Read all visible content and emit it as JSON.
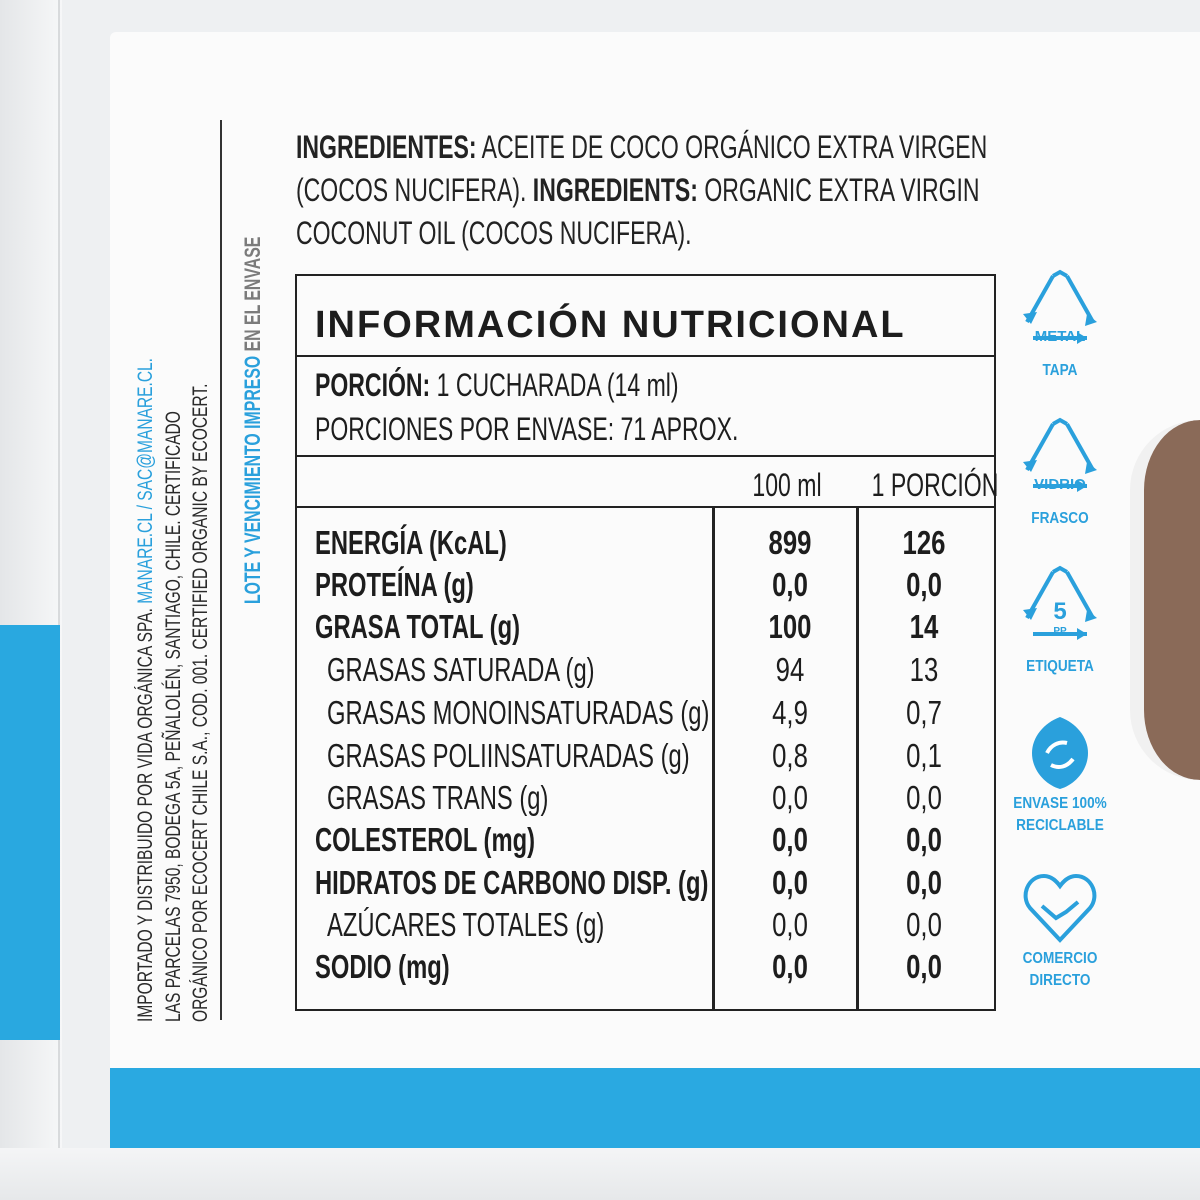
{
  "side_text": {
    "line1_a": "IMPORTADO Y DISTRIBUIDO POR VIDA ORGÁNICA SPA. ",
    "line1_b": "MANARE.CL / SAC@MANARE.CL.",
    "line2": "LAS PARCELAS 7950, BODEGA 5A, PEÑALOLÉN, SANTIAGO, CHILE. CERTIFICADO",
    "line3": "ORGÁNICO POR ECOCERT CHILE S.A., COD. 001. CERTIFIED ORGANIC BY ECOCERT.",
    "lote_blue": "LOTE Y VENCIMIENTO IMPRESO",
    "lote_gray": " EN EL ENVASE"
  },
  "ingredients": {
    "label_es": "INGREDIENTES:",
    "text_es_1": " ACEITE DE COCO ORGÁNICO EXTRA VIRGEN",
    "text_es_2": "(COCOS NUCIFERA). ",
    "label_en": "INGREDIENTS:",
    "text_en_1": " ORGANIC EXTRA VIRGIN",
    "text_en_2": "COCONUT OIL (COCOS NUCIFERA)."
  },
  "nutrition": {
    "title": "INFORMACIÓN NUTRICIONAL",
    "portion_label": "PORCIÓN:",
    "portion_value": " 1 CUCHARADA (14 ml)",
    "servings": "PORCIONES POR ENVASE: 71 APROX.",
    "col1": "100 ml",
    "col2": "1 PORCIÓN",
    "rows": [
      {
        "name": "ENERGÍA (KcAL)",
        "v1": "899",
        "v2": "126",
        "style": "main"
      },
      {
        "name": "PROTEÍNA (g)",
        "v1": "0,0",
        "v2": "0,0",
        "style": "bold"
      },
      {
        "name": "GRASA TOTAL (g)",
        "v1": "100",
        "v2": "14",
        "style": "bold"
      },
      {
        "name": "GRASAS SATURADA (g)",
        "v1": "94",
        "v2": "13",
        "style": "sub"
      },
      {
        "name": "GRASAS MONOINSATURADAS (g)",
        "v1": "4,9",
        "v2": "0,7",
        "style": "sub"
      },
      {
        "name": "GRASAS POLIINSATURADAS (g)",
        "v1": "0,8",
        "v2": "0,1",
        "style": "sub"
      },
      {
        "name": "GRASAS TRANS (g)",
        "v1": "0,0",
        "v2": "0,0",
        "style": "sub"
      },
      {
        "name": "COLESTEROL (mg)",
        "v1": "0,0",
        "v2": "0,0",
        "style": "bold"
      },
      {
        "name": "HIDRATOS DE CARBONO DISP. (g)",
        "v1": "0,0",
        "v2": "0,0",
        "style": "bold"
      },
      {
        "name": "AZÚCARES TOTALES (g)",
        "v1": "0,0",
        "v2": "0,0",
        "style": "sub"
      },
      {
        "name": "SODIO (mg)",
        "v1": "0,0",
        "v2": "0,0",
        "style": "bold"
      }
    ]
  },
  "icons": [
    {
      "icon": "recycle-triangle-icon",
      "inner": "METAL",
      "caption": "TAPA"
    },
    {
      "icon": "recycle-triangle-icon",
      "inner": "VIDRIO",
      "caption": "FRASCO"
    },
    {
      "icon": "recycle-triangle-icon",
      "inner": "5",
      "inner2": "PP",
      "caption": "ETIQUETA"
    },
    {
      "icon": "recyclable-leaves-icon",
      "caption": "ENVASE 100%",
      "caption2": "RECICLABLE"
    },
    {
      "icon": "handshake-heart-icon",
      "caption": "COMERCIO",
      "caption2": "DIRECTO"
    }
  ],
  "colors": {
    "brand_blue": "#2aa9e1",
    "text": "#1d1d1d"
  }
}
